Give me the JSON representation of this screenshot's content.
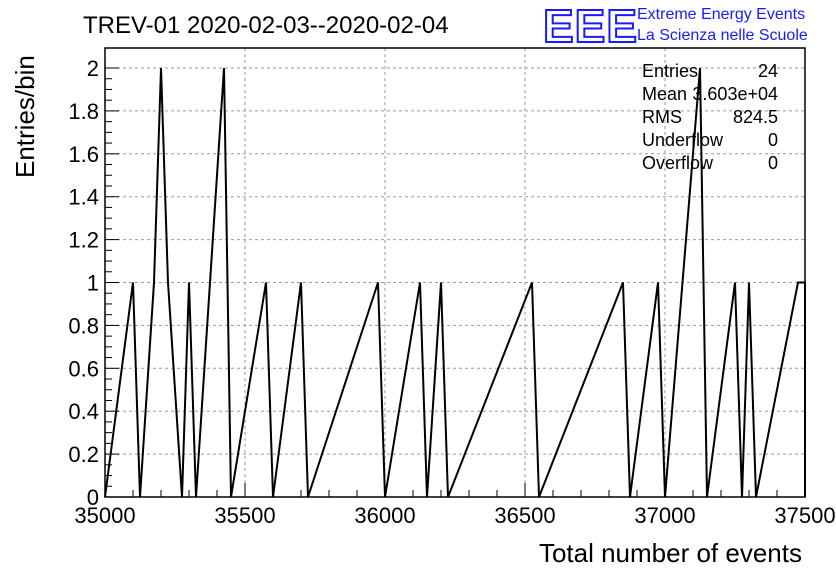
{
  "chart_data": {
    "type": "histogram",
    "title": "TREV-01 2020-02-03--2020-02-04",
    "xlabel": "Total number of events",
    "ylabel": "Entries/bin",
    "xlim": [
      35000,
      37500
    ],
    "ylim": [
      0,
      2
    ],
    "x_ticks": [
      35000,
      35500,
      36000,
      36500,
      37000,
      37500
    ],
    "x_tick_labels": [
      "35000",
      "35500",
      "36000",
      "36500",
      "37000",
      "37500"
    ],
    "y_ticks": [
      0,
      0.2,
      0.4,
      0.6,
      0.8,
      1,
      1.2,
      1.4,
      1.6,
      1.8,
      2
    ],
    "y_tick_labels": [
      "0",
      "0.2",
      "0.4",
      "0.6",
      "0.8",
      "1",
      "1.2",
      "1.4",
      "1.6",
      "1.8",
      "2"
    ],
    "grid": true,
    "bin_width": 25,
    "bins": [
      {
        "x": 35100,
        "count": 1
      },
      {
        "x": 35175,
        "count": 1
      },
      {
        "x": 35200,
        "count": 2
      },
      {
        "x": 35225,
        "count": 1
      },
      {
        "x": 35250,
        "count": 1
      },
      {
        "x": 35300,
        "count": 1
      },
      {
        "x": 35375,
        "count": 1
      },
      {
        "x": 35400,
        "count": 1
      },
      {
        "x": 35425,
        "count": 2
      },
      {
        "x": 35575,
        "count": 1
      },
      {
        "x": 35700,
        "count": 1
      },
      {
        "x": 35975,
        "count": 1
      },
      {
        "x": 36125,
        "count": 1
      },
      {
        "x": 36200,
        "count": 1
      },
      {
        "x": 36525,
        "count": 1
      },
      {
        "x": 36850,
        "count": 1
      },
      {
        "x": 36975,
        "count": 1
      },
      {
        "x": 37125,
        "count": 2
      },
      {
        "x": 37250,
        "count": 1
      },
      {
        "x": 37300,
        "count": 1
      },
      {
        "x": 37475,
        "count": 1
      }
    ],
    "stats": {
      "entries_label": "Entries",
      "entries_value": "24",
      "mean_label": "Mean",
      "mean_value": "3.603e+04",
      "rms_label": "RMS",
      "rms_value": "824.5",
      "underflow_label": "Underflow",
      "underflow_value": "0",
      "overflow_label": "Overflow",
      "overflow_value": "0"
    }
  },
  "logo": {
    "mark": "EEE",
    "line1": "Extreme Energy Events",
    "line2": "La Scienza nelle Scuole",
    "color": "#1a1aff"
  }
}
